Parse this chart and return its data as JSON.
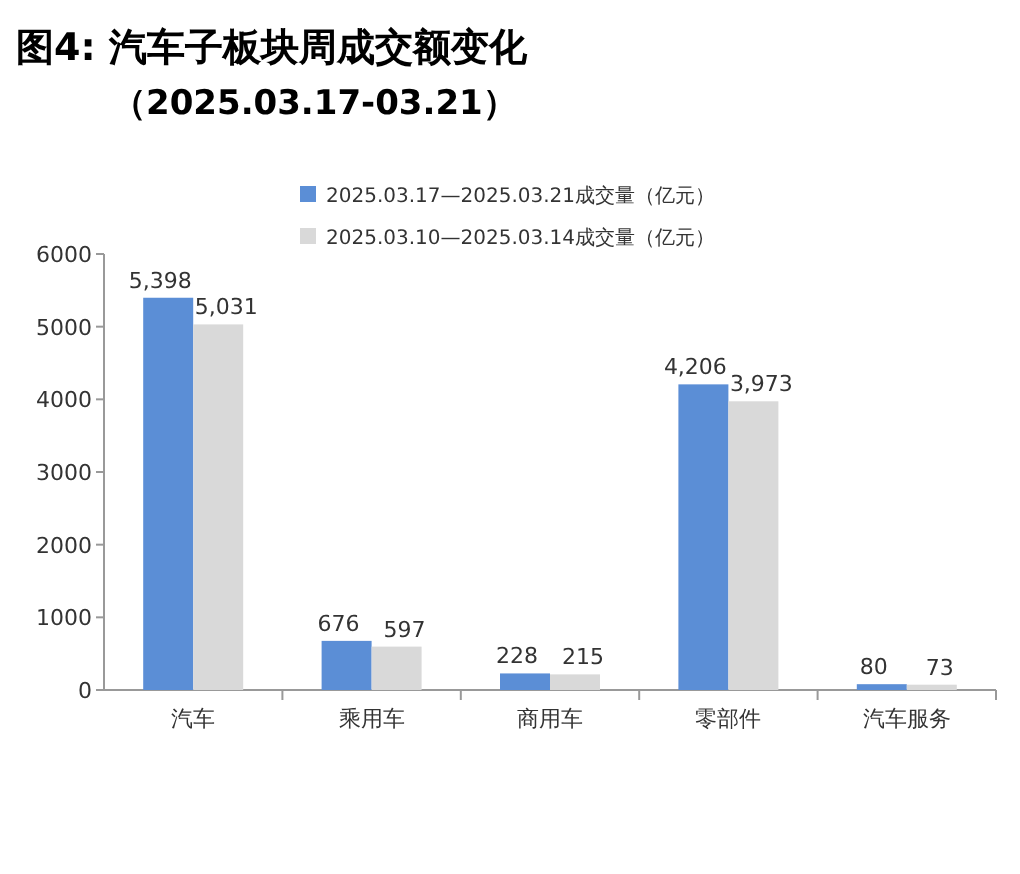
{
  "chart_data": {
    "type": "bar",
    "title": "图4: 汽车子板块周成交额变化",
    "subtitle": "（2025.03.17-03.21）",
    "categories": [
      "汽车",
      "乘用车",
      "商用车",
      "零部件",
      "汽车服务"
    ],
    "series": [
      {
        "name": "2025.03.17—2025.03.21成交量（亿元）",
        "color": "#5b8ed6",
        "values": [
          5398,
          676,
          228,
          4206,
          80
        ],
        "value_labels": [
          "5,398",
          "676",
          "228",
          "4,206",
          "80"
        ]
      },
      {
        "name": "2025.03.10—2025.03.14成交量（亿元）",
        "color": "#d9d9d9",
        "values": [
          5031,
          597,
          215,
          3973,
          73
        ],
        "value_labels": [
          "5,031",
          "597",
          "215",
          "3,973",
          "73"
        ]
      }
    ],
    "ylim": [
      0,
      6000
    ],
    "yticks": [
      0,
      1000,
      2000,
      3000,
      4000,
      5000,
      6000
    ],
    "legend": "top"
  }
}
